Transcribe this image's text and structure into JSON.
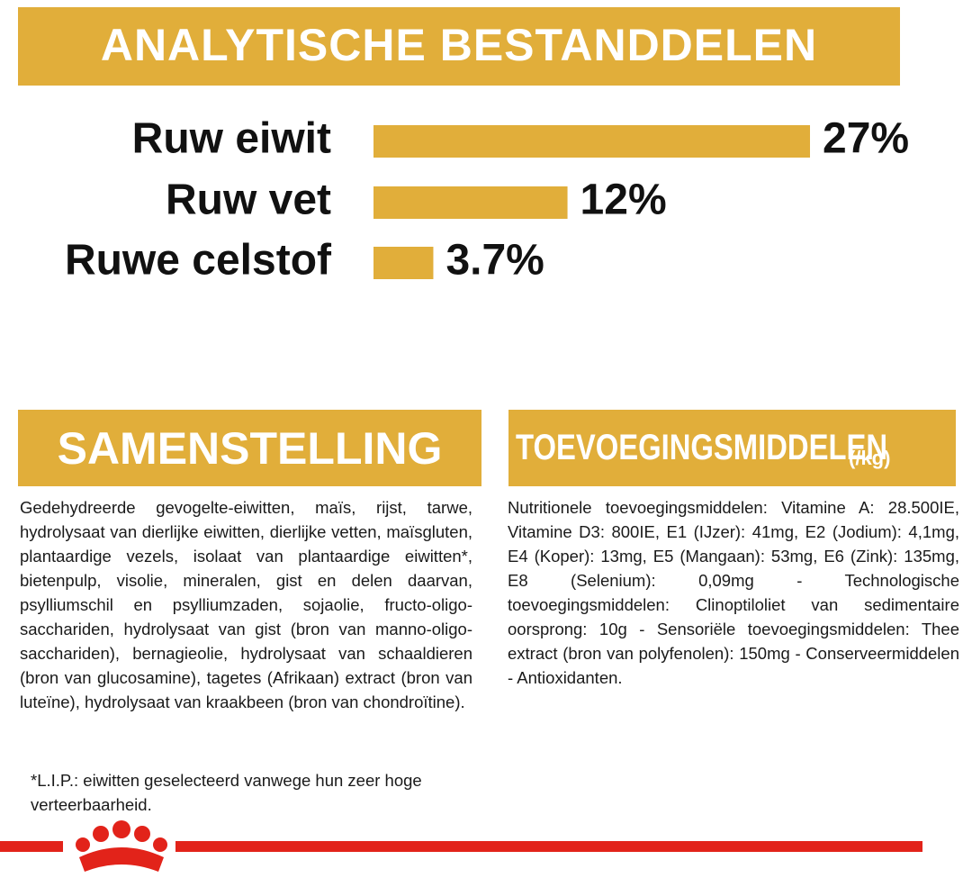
{
  "chart_data": {
    "type": "bar",
    "orientation": "horizontal",
    "title": "ANALYTISCHE BESTANDDELEN",
    "categories": [
      "Ruw eiwit",
      "Ruw vet",
      "Ruwe celstof"
    ],
    "values": [
      27,
      12,
      3.7
    ],
    "value_labels": [
      "27%",
      "12%",
      "3.7%"
    ],
    "color": "#e1ae3a"
  },
  "composition": {
    "title": "SAMENSTELLING",
    "text": "Gedehydreerde gevogelte-eiwitten, maïs, rijst, tarwe, hydrolysaat van dierlijke eiwitten, dierlijke vetten, maïsgluten, plantaardige vezels, isolaat van plantaardige eiwitten*, bietenpulp, visolie, mineralen, gist en delen daarvan, psylliumschil en psylliumzaden, sojaolie, fructo-oligo-sacchariden, hydrolysaat van gist (bron van manno-oligo-sacchariden), bernagieolie, hydrolysaat van schaaldieren (bron van glucosamine), tagetes (Afrikaan) extract (bron van luteïne), hydrolysaat van kraakbeen (bron van chondroïtine).",
    "footnote": "*L.I.P.: eiwitten geselecteerd vanwege hun zeer hoge verteerbaarheid."
  },
  "additives": {
    "title": "TOEVOEGINGSMIDDELEN",
    "unit": "(/kg)",
    "text": "Nutritionele toevoegingsmiddelen: Vitamine A: 28.500IE, Vitamine D3: 800IE, E1 (IJzer): 41mg, E2 (Jodium): 4,1mg, E4 (Koper): 13mg, E5 (Mangaan): 53mg, E6 (Zink): 135mg, E8 (Selenium): 0,09mg - Technologische toevoegingsmiddelen: Clinoptiloliet van sedimentaire oorsprong: 10g - Sensoriële toevoegingsmiddelen: Thee extract (bron van polyfenolen): 150mg - Conserveermiddelen - Antioxidanten."
  }
}
